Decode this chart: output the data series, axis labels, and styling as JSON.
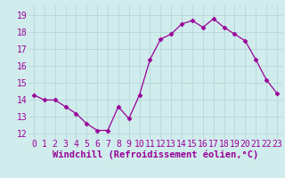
{
  "x": [
    0,
    1,
    2,
    3,
    4,
    5,
    6,
    7,
    8,
    9,
    10,
    11,
    12,
    13,
    14,
    15,
    16,
    17,
    18,
    19,
    20,
    21,
    22,
    23
  ],
  "y": [
    14.3,
    14.0,
    14.0,
    13.6,
    13.2,
    12.6,
    12.2,
    12.2,
    13.6,
    12.9,
    14.3,
    16.4,
    17.6,
    17.9,
    18.5,
    18.7,
    18.3,
    18.8,
    18.3,
    17.9,
    17.5,
    16.4,
    15.2,
    14.4
  ],
  "line_color": "#990099",
  "marker": "D",
  "marker_size": 2.5,
  "bg_color": "#d0ecec",
  "grid_color": "#b0d4d4",
  "xlabel": "Windchill (Refroidissement éolien,°C)",
  "xlabel_color": "#990099",
  "xlabel_fontsize": 7.5,
  "tick_color": "#990099",
  "tick_fontsize": 7,
  "yticks": [
    12,
    13,
    14,
    15,
    16,
    17,
    18,
    19
  ],
  "ylim": [
    11.7,
    19.6
  ],
  "xlim": [
    -0.5,
    23.5
  ],
  "xtick_vals": [
    0,
    1,
    2,
    3,
    4,
    5,
    6,
    7,
    8,
    9,
    10,
    11,
    12,
    13,
    14,
    15,
    16,
    17,
    18,
    19,
    20,
    21,
    22,
    23
  ]
}
